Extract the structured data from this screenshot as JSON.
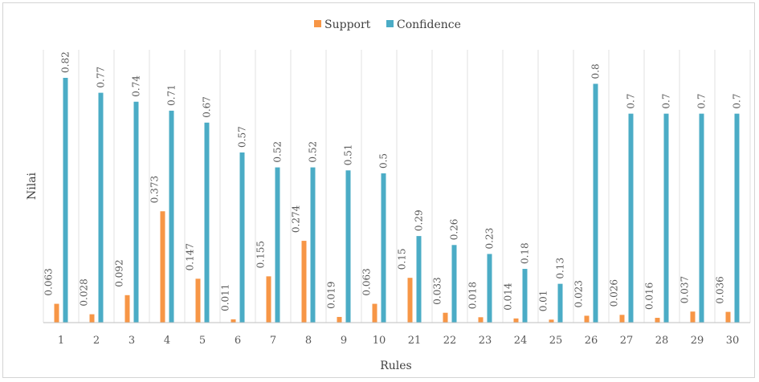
{
  "chart_data": {
    "type": "bar",
    "categories": [
      "1",
      "2",
      "3",
      "4",
      "5",
      "6",
      "7",
      "8",
      "9",
      "10",
      "21",
      "22",
      "23",
      "24",
      "25",
      "26",
      "27",
      "28",
      "29",
      "30"
    ],
    "series": [
      {
        "name": "Support",
        "color": "#f79646",
        "values": [
          0.063,
          0.028,
          0.092,
          0.373,
          0.147,
          0.011,
          0.155,
          0.274,
          0.019,
          0.063,
          0.15,
          0.033,
          0.018,
          0.014,
          0.01,
          0.023,
          0.026,
          0.016,
          0.037,
          0.036
        ]
      },
      {
        "name": "Confidence",
        "color": "#4bacc6",
        "values": [
          0.82,
          0.77,
          0.74,
          0.71,
          0.67,
          0.57,
          0.52,
          0.52,
          0.51,
          0.5,
          0.29,
          0.26,
          0.23,
          0.18,
          0.13,
          0.8,
          0.7,
          0.7,
          0.7,
          0.7
        ]
      }
    ],
    "title": "",
    "xlabel": "Rules",
    "ylabel": "Nilai",
    "ylim": [
      0,
      0.82
    ],
    "grid": "vertical category separators",
    "legend_position": "top-center",
    "data_labels": true
  }
}
